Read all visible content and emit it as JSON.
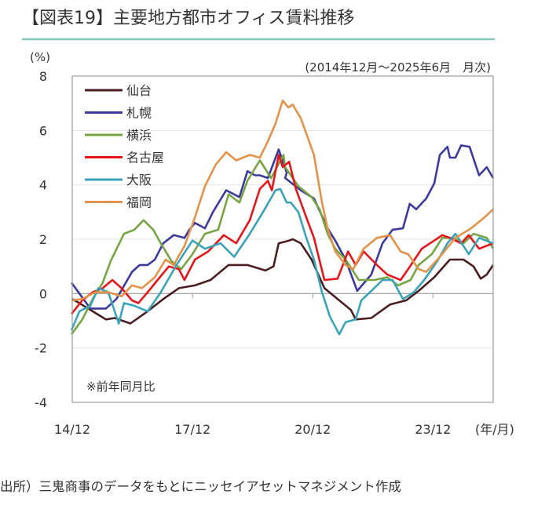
{
  "title": "【図表19】主要地方都市オフィス賃料推移",
  "source": "出所）三鬼商事のデータをもとにニッセイアセットマネジメント作成",
  "colors": {
    "accent_line": "#86c8b8",
    "grid": "#e3e3e3",
    "axis": "#999999"
  },
  "chart_data": {
    "type": "line",
    "title": "【図表19】主要地方都市オフィス賃料推移",
    "subtitle": "(2014年12月～2025年6月　月次)",
    "ylabel": "(%)",
    "xlabel": "(年/月)",
    "note": "※前年同月比",
    "ylim": [
      -4,
      8
    ],
    "xlim": [
      2014.92,
      2025.42
    ],
    "yticks": [
      "8",
      "6",
      "4",
      "2",
      "0",
      "-2",
      "-4"
    ],
    "xticks": [
      {
        "label": "14/12",
        "x": 2014.92
      },
      {
        "label": "17/12",
        "x": 2017.92
      },
      {
        "label": "20/12",
        "x": 2020.92
      },
      {
        "label": "23/12",
        "x": 2023.92
      }
    ],
    "grid": true,
    "legend_position": "top-left",
    "series": [
      {
        "name": "仙台",
        "color": "#4b1f22",
        "points": [
          [
            2014.92,
            -0.2
          ],
          [
            2015.04,
            -0.3
          ],
          [
            2015.76,
            -0.95
          ],
          [
            2015.98,
            -0.9
          ],
          [
            2016.37,
            -1.1
          ],
          [
            2016.8,
            -0.65
          ],
          [
            2017.19,
            -0.2
          ],
          [
            2017.58,
            0.2
          ],
          [
            2017.98,
            0.3
          ],
          [
            2018.37,
            0.5
          ],
          [
            2018.82,
            1.05
          ],
          [
            2019.29,
            1.05
          ],
          [
            2019.74,
            0.85
          ],
          [
            2019.94,
            1.0
          ],
          [
            2020.07,
            1.85
          ],
          [
            2020.33,
            1.95
          ],
          [
            2020.42,
            2.0
          ],
          [
            2020.62,
            1.85
          ],
          [
            2020.89,
            1.25
          ],
          [
            2021.21,
            0.2
          ],
          [
            2021.54,
            -0.2
          ],
          [
            2021.87,
            -0.6
          ],
          [
            2021.99,
            -0.95
          ],
          [
            2022.38,
            -0.9
          ],
          [
            2022.85,
            -0.4
          ],
          [
            2023.25,
            -0.25
          ],
          [
            2023.56,
            0.1
          ],
          [
            2023.95,
            0.6
          ],
          [
            2024.34,
            1.25
          ],
          [
            2024.68,
            1.25
          ],
          [
            2024.93,
            1.0
          ],
          [
            2025.11,
            0.55
          ],
          [
            2025.26,
            0.7
          ],
          [
            2025.42,
            1.05
          ]
        ]
      },
      {
        "name": "札幌",
        "color": "#3d3a9c",
        "points": [
          [
            2014.9,
            0.4
          ],
          [
            2015.1,
            0.0
          ],
          [
            2015.37,
            -0.55
          ],
          [
            2015.76,
            -0.55
          ],
          [
            2016.02,
            -0.2
          ],
          [
            2016.41,
            0.8
          ],
          [
            2016.6,
            1.05
          ],
          [
            2016.8,
            1.05
          ],
          [
            2016.98,
            1.25
          ],
          [
            2017.19,
            1.85
          ],
          [
            2017.45,
            2.15
          ],
          [
            2017.72,
            2.05
          ],
          [
            2017.84,
            2.35
          ],
          [
            2017.98,
            2.6
          ],
          [
            2018.23,
            2.4
          ],
          [
            2018.43,
            3.0
          ],
          [
            2018.76,
            3.8
          ],
          [
            2019.09,
            3.55
          ],
          [
            2019.29,
            4.5
          ],
          [
            2019.48,
            4.35
          ],
          [
            2019.6,
            4.35
          ],
          [
            2019.8,
            4.25
          ],
          [
            2020.07,
            5.3
          ],
          [
            2020.27,
            4.45
          ],
          [
            2020.23,
            4.25
          ],
          [
            2020.62,
            3.8
          ],
          [
            2020.95,
            3.5
          ],
          [
            2021.29,
            2.4
          ],
          [
            2021.48,
            1.95
          ],
          [
            2021.74,
            1.25
          ],
          [
            2022.03,
            0.1
          ],
          [
            2022.38,
            0.7
          ],
          [
            2022.66,
            1.85
          ],
          [
            2022.91,
            2.35
          ],
          [
            2023.17,
            2.4
          ],
          [
            2023.34,
            3.3
          ],
          [
            2023.5,
            3.1
          ],
          [
            2023.75,
            3.5
          ],
          [
            2023.95,
            4.05
          ],
          [
            2024.09,
            5.1
          ],
          [
            2024.28,
            5.4
          ],
          [
            2024.34,
            5.0
          ],
          [
            2024.48,
            5.0
          ],
          [
            2024.62,
            5.45
          ],
          [
            2024.83,
            5.4
          ],
          [
            2025.07,
            4.35
          ],
          [
            2025.26,
            4.65
          ],
          [
            2025.42,
            4.25
          ]
        ]
      },
      {
        "name": "横浜",
        "color": "#77a545",
        "points": [
          [
            2014.9,
            -1.5
          ],
          [
            2015.17,
            -0.95
          ],
          [
            2015.43,
            -0.2
          ],
          [
            2015.68,
            0.4
          ],
          [
            2015.88,
            1.2
          ],
          [
            2016.21,
            2.2
          ],
          [
            2016.47,
            2.35
          ],
          [
            2016.7,
            2.7
          ],
          [
            2016.94,
            2.35
          ],
          [
            2017.13,
            1.85
          ],
          [
            2017.39,
            1.2
          ],
          [
            2017.64,
            0.9
          ],
          [
            2017.92,
            1.45
          ],
          [
            2018.23,
            2.2
          ],
          [
            2018.56,
            2.35
          ],
          [
            2018.82,
            3.65
          ],
          [
            2019.09,
            3.35
          ],
          [
            2019.29,
            4.15
          ],
          [
            2019.6,
            4.9
          ],
          [
            2019.88,
            4.25
          ],
          [
            2020.19,
            5.1
          ],
          [
            2020.23,
            4.65
          ],
          [
            2020.56,
            3.95
          ],
          [
            2020.89,
            3.55
          ],
          [
            2021.09,
            3.1
          ],
          [
            2021.29,
            2.2
          ],
          [
            2021.48,
            1.65
          ],
          [
            2021.74,
            1.25
          ],
          [
            2022.07,
            0.5
          ],
          [
            2022.46,
            0.5
          ],
          [
            2022.78,
            0.6
          ],
          [
            2023.05,
            0.3
          ],
          [
            2023.36,
            0.5
          ],
          [
            2023.56,
            1.05
          ],
          [
            2023.89,
            1.45
          ],
          [
            2024.15,
            2.05
          ],
          [
            2024.42,
            2.05
          ],
          [
            2024.68,
            1.85
          ],
          [
            2024.93,
            2.2
          ],
          [
            2025.26,
            2.05
          ],
          [
            2025.42,
            1.65
          ]
        ]
      },
      {
        "name": "名古屋",
        "color": "#e5161b",
        "points": [
          [
            2014.9,
            -0.75
          ],
          [
            2015.17,
            -0.25
          ],
          [
            2015.43,
            0.05
          ],
          [
            2015.68,
            0.2
          ],
          [
            2015.92,
            0.5
          ],
          [
            2016.15,
            0.2
          ],
          [
            2016.41,
            -0.25
          ],
          [
            2016.57,
            -0.35
          ],
          [
            2016.8,
            0.05
          ],
          [
            2017.05,
            0.5
          ],
          [
            2017.33,
            1.0
          ],
          [
            2017.58,
            0.9
          ],
          [
            2017.72,
            0.5
          ],
          [
            2017.98,
            1.25
          ],
          [
            2018.31,
            1.55
          ],
          [
            2018.7,
            2.15
          ],
          [
            2019.01,
            1.85
          ],
          [
            2019.35,
            2.7
          ],
          [
            2019.6,
            3.85
          ],
          [
            2019.8,
            4.15
          ],
          [
            2019.9,
            3.8
          ],
          [
            2020.07,
            5.1
          ],
          [
            2020.17,
            4.65
          ],
          [
            2020.33,
            4.85
          ],
          [
            2020.5,
            3.85
          ],
          [
            2020.76,
            2.8
          ],
          [
            2020.95,
            2.05
          ],
          [
            2021.21,
            0.5
          ],
          [
            2021.54,
            0.55
          ],
          [
            2021.8,
            1.55
          ],
          [
            2021.99,
            1.05
          ],
          [
            2022.19,
            1.55
          ],
          [
            2022.52,
            1.05
          ],
          [
            2022.78,
            0.7
          ],
          [
            2023.11,
            0.5
          ],
          [
            2023.3,
            0.9
          ],
          [
            2023.64,
            1.65
          ],
          [
            2023.95,
            1.95
          ],
          [
            2024.15,
            2.15
          ],
          [
            2024.34,
            2.05
          ],
          [
            2024.62,
            1.85
          ],
          [
            2024.81,
            2.15
          ],
          [
            2025.07,
            1.65
          ],
          [
            2025.42,
            1.85
          ]
        ]
      },
      {
        "name": "大阪",
        "color": "#3ba3b8",
        "points": [
          [
            2014.9,
            -1.35
          ],
          [
            2015.1,
            -0.65
          ],
          [
            2015.37,
            -0.45
          ],
          [
            2015.57,
            0.2
          ],
          [
            2015.82,
            0.05
          ],
          [
            2016.08,
            -1.1
          ],
          [
            2016.21,
            -0.35
          ],
          [
            2016.47,
            -0.45
          ],
          [
            2016.8,
            -0.65
          ],
          [
            2017.13,
            0.05
          ],
          [
            2017.52,
            1.05
          ],
          [
            2017.92,
            1.95
          ],
          [
            2018.23,
            1.65
          ],
          [
            2018.62,
            1.85
          ],
          [
            2018.96,
            1.35
          ],
          [
            2019.35,
            2.2
          ],
          [
            2019.68,
            3.0
          ],
          [
            2019.99,
            3.8
          ],
          [
            2020.11,
            3.85
          ],
          [
            2020.27,
            3.35
          ],
          [
            2020.37,
            3.35
          ],
          [
            2020.56,
            3.0
          ],
          [
            2020.76,
            2.05
          ],
          [
            2020.95,
            1.25
          ],
          [
            2021.15,
            0.05
          ],
          [
            2021.35,
            -0.85
          ],
          [
            2021.58,
            -1.5
          ],
          [
            2021.74,
            -1.05
          ],
          [
            2021.99,
            -0.95
          ],
          [
            2022.13,
            -0.25
          ],
          [
            2022.38,
            0.1
          ],
          [
            2022.66,
            0.5
          ],
          [
            2022.91,
            0.5
          ],
          [
            2023.17,
            -0.2
          ],
          [
            2023.44,
            0.05
          ],
          [
            2023.7,
            0.5
          ],
          [
            2024.03,
            1.2
          ],
          [
            2024.28,
            1.85
          ],
          [
            2024.48,
            2.2
          ],
          [
            2024.81,
            1.45
          ],
          [
            2025.07,
            2.05
          ],
          [
            2025.42,
            1.85
          ]
        ]
      },
      {
        "name": "福岡",
        "color": "#e29349",
        "points": [
          [
            2014.9,
            -0.25
          ],
          [
            2015.17,
            -0.2
          ],
          [
            2015.49,
            0.05
          ],
          [
            2015.82,
            0.05
          ],
          [
            2016.15,
            -0.1
          ],
          [
            2016.41,
            0.3
          ],
          [
            2016.66,
            0.2
          ],
          [
            2016.98,
            0.6
          ],
          [
            2017.25,
            1.25
          ],
          [
            2017.45,
            1.05
          ],
          [
            2017.72,
            1.75
          ],
          [
            2017.98,
            2.8
          ],
          [
            2018.23,
            3.95
          ],
          [
            2018.5,
            4.75
          ],
          [
            2018.76,
            5.2
          ],
          [
            2019.01,
            4.9
          ],
          [
            2019.35,
            5.1
          ],
          [
            2019.6,
            5.0
          ],
          [
            2019.8,
            5.6
          ],
          [
            2019.99,
            6.25
          ],
          [
            2020.17,
            7.1
          ],
          [
            2020.31,
            6.85
          ],
          [
            2020.42,
            6.95
          ],
          [
            2020.62,
            6.45
          ],
          [
            2020.95,
            5.1
          ],
          [
            2021.15,
            3.35
          ],
          [
            2021.29,
            2.4
          ],
          [
            2021.48,
            1.55
          ],
          [
            2021.74,
            1.05
          ],
          [
            2021.93,
            0.9
          ],
          [
            2022.19,
            1.65
          ],
          [
            2022.52,
            2.05
          ],
          [
            2022.85,
            2.15
          ],
          [
            2023.11,
            1.55
          ],
          [
            2023.3,
            1.45
          ],
          [
            2023.56,
            0.9
          ],
          [
            2023.75,
            0.8
          ],
          [
            2024.09,
            1.35
          ],
          [
            2024.48,
            2.05
          ],
          [
            2024.87,
            2.4
          ],
          [
            2025.2,
            2.8
          ],
          [
            2025.42,
            3.1
          ]
        ]
      }
    ]
  }
}
